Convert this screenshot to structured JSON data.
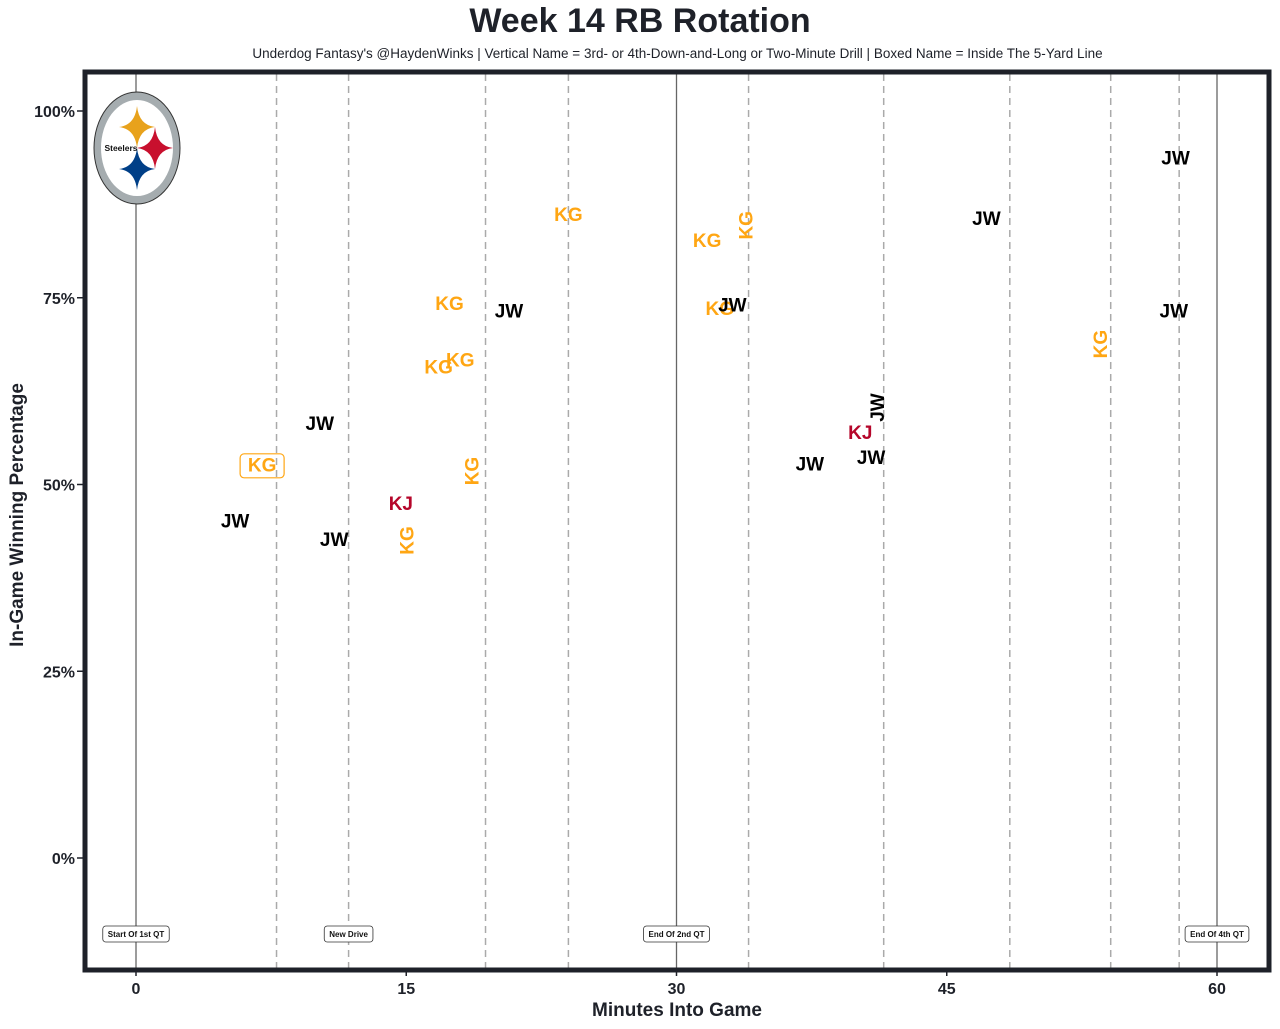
{
  "chart_data": {
    "type": "scatter",
    "title": "Week 14 RB Rotation",
    "subtitle": "Underdog Fantasy's @HaydenWinks | Vertical Name = 3rd- or 4th-Down-and-Long or Two-Minute Drill | Boxed Name = Inside The 5-Yard Line",
    "xlabel": "Minutes Into Game",
    "ylabel": "In-Game Winning Percentage",
    "xlim": [
      -2.5,
      62.8
    ],
    "ylim": [
      -15,
      105.5
    ],
    "x_ticks": [
      0,
      15,
      30,
      45,
      60
    ],
    "x_tick_labels": [
      "0",
      "15",
      "30",
      "45",
      "60"
    ],
    "y_ticks": [
      0,
      25,
      50,
      75,
      100
    ],
    "y_tick_labels": [
      "0%",
      "25%",
      "50%",
      "75%",
      "100%"
    ],
    "grid": false,
    "team": "Steelers",
    "player_colors": {
      "JW": "#000000",
      "KG": "#ffa613",
      "KJ": "#b5062a"
    },
    "solid_vlines": [
      0,
      30,
      60
    ],
    "dashed_vlines": [
      7.8,
      11.8,
      19.4,
      24.0,
      34.0,
      41.5,
      48.5,
      54.1,
      57.9
    ],
    "annotations": [
      {
        "x": 0,
        "label": "Start Of 1st QT"
      },
      {
        "x": 11.8,
        "label": "New Drive"
      },
      {
        "x": 30,
        "label": "End Of 2nd QT"
      },
      {
        "x": 60,
        "label": "End Of 4th QT"
      }
    ],
    "points": [
      {
        "player": "JW",
        "x": 5.5,
        "y": 45,
        "vertical": false,
        "boxed": false
      },
      {
        "player": "KG",
        "x": 7.0,
        "y": 52.5,
        "vertical": false,
        "boxed": true
      },
      {
        "player": "JW",
        "x": 10.2,
        "y": 58,
        "vertical": false,
        "boxed": false
      },
      {
        "player": "JW",
        "x": 11.0,
        "y": 42.5,
        "vertical": false,
        "boxed": false
      },
      {
        "player": "KJ",
        "x": 14.7,
        "y": 47.3,
        "vertical": false,
        "boxed": false
      },
      {
        "player": "KG",
        "x": 15.1,
        "y": 42.5,
        "vertical": true,
        "boxed": false
      },
      {
        "player": "KG",
        "x": 16.8,
        "y": 65.6,
        "vertical": false,
        "boxed": false
      },
      {
        "player": "KG",
        "x": 17.4,
        "y": 74.1,
        "vertical": false,
        "boxed": false
      },
      {
        "player": "KG",
        "x": 18.0,
        "y": 66.5,
        "vertical": false,
        "boxed": false
      },
      {
        "player": "KG",
        "x": 18.7,
        "y": 51.8,
        "vertical": true,
        "boxed": false
      },
      {
        "player": "JW",
        "x": 20.7,
        "y": 73.1,
        "vertical": false,
        "boxed": false
      },
      {
        "player": "KG",
        "x": 24.0,
        "y": 86.0,
        "vertical": false,
        "boxed": false
      },
      {
        "player": "KG",
        "x": 31.7,
        "y": 82.5,
        "vertical": false,
        "boxed": false
      },
      {
        "player": "KG",
        "x": 32.4,
        "y": 73.4,
        "vertical": false,
        "boxed": false
      },
      {
        "player": "JW",
        "x": 33.1,
        "y": 73.9,
        "vertical": false,
        "boxed": false
      },
      {
        "player": "KG",
        "x": 33.9,
        "y": 84.7,
        "vertical": true,
        "boxed": false
      },
      {
        "player": "JW",
        "x": 37.4,
        "y": 52.6,
        "vertical": false,
        "boxed": false
      },
      {
        "player": "KJ",
        "x": 40.2,
        "y": 56.8,
        "vertical": false,
        "boxed": false
      },
      {
        "player": "JW",
        "x": 40.8,
        "y": 53.5,
        "vertical": false,
        "boxed": false
      },
      {
        "player": "JW",
        "x": 41.2,
        "y": 60.3,
        "vertical": true,
        "boxed": false
      },
      {
        "player": "JW",
        "x": 47.2,
        "y": 85.5,
        "vertical": false,
        "boxed": false
      },
      {
        "player": "KG",
        "x": 53.6,
        "y": 68.8,
        "vertical": true,
        "boxed": false
      },
      {
        "player": "JW",
        "x": 57.6,
        "y": 73.1,
        "vertical": false,
        "boxed": false
      },
      {
        "player": "JW",
        "x": 57.7,
        "y": 93.6,
        "vertical": false,
        "boxed": false
      }
    ]
  }
}
